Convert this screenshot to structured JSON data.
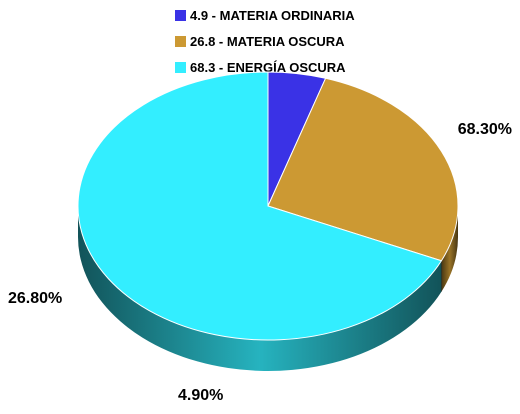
{
  "chart_data": {
    "type": "pie",
    "style": "3d",
    "legend_position": "top",
    "slices": [
      {
        "label": "MATERIA ORDINARIA",
        "value": 4.9,
        "legend_text": "4.9 - MATERIA ORDINARIA",
        "data_label": "4.90%",
        "color": "#3a32e6"
      },
      {
        "label": "MATERIA OSCURA",
        "value": 26.8,
        "legend_text": "26.8 - MATERIA OSCURA",
        "data_label": "26.80%",
        "color": "#cc9933"
      },
      {
        "label": "ENERGÍA OSCURA",
        "value": 68.3,
        "legend_text": "68.3 - ENERGÍA OSCURA",
        "data_label": "68.30%",
        "color": "#33eeff"
      }
    ]
  }
}
